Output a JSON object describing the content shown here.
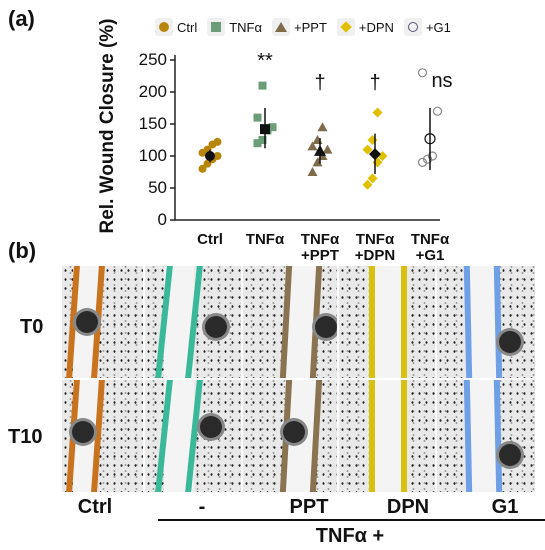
{
  "panel_a_label": "(a)",
  "panel_b_label": "(b)",
  "legend": [
    {
      "label": "Ctrl",
      "color": "#b8860b",
      "shape": "circle"
    },
    {
      "label": "TNFα",
      "color": "#6b9e78",
      "shape": "square"
    },
    {
      "label": "+PPT",
      "color": "#7d6b4a",
      "shape": "triangle"
    },
    {
      "label": "+DPN",
      "color": "#e0c000",
      "shape": "diamond"
    },
    {
      "label": "+G1",
      "color": "#555577",
      "shape": "open-circle"
    }
  ],
  "chart_data": {
    "type": "scatter",
    "ylabel": "Rel. Wound Closure (%)",
    "ylim": [
      0,
      250
    ],
    "yticks": [
      "0",
      "50",
      "100",
      "150",
      "200",
      "250"
    ],
    "categories": [
      "Ctrl",
      "TNFα",
      "TNFα\n+PPT",
      "TNFα\n+DPN",
      "TNFα\n+G1"
    ],
    "colors": [
      "#b8860b",
      "#6b9e78",
      "#7d6b4a",
      "#e0c000",
      "#888888"
    ],
    "shapes": [
      "circle",
      "square",
      "triangle",
      "diamond",
      "open-circle"
    ],
    "points": [
      [
        80,
        88,
        95,
        100,
        105,
        110,
        118,
        122
      ],
      [
        120,
        125,
        140,
        145,
        160,
        210
      ],
      [
        75,
        90,
        100,
        110,
        115,
        125,
        145
      ],
      [
        55,
        65,
        90,
        100,
        110,
        125,
        168
      ],
      [
        90,
        95,
        100,
        170,
        230
      ]
    ],
    "means": [
      100,
      142,
      108,
      103,
      127
    ],
    "err_low": [
      90,
      112,
      88,
      72,
      78
    ],
    "err_high": [
      110,
      175,
      128,
      135,
      175
    ],
    "significance": [
      "",
      "**",
      "†",
      "†",
      "ns"
    ]
  },
  "photos": {
    "row_labels": [
      "T0",
      "T10"
    ],
    "column_labels": [
      "Ctrl",
      "-",
      "PPT",
      "DPN",
      "G1"
    ],
    "group_label": "TNFα  +",
    "line_colors": [
      "#c9731f",
      "#3ab89a",
      "#8a7350",
      "#d8c010",
      "#6fa0e6"
    ]
  }
}
